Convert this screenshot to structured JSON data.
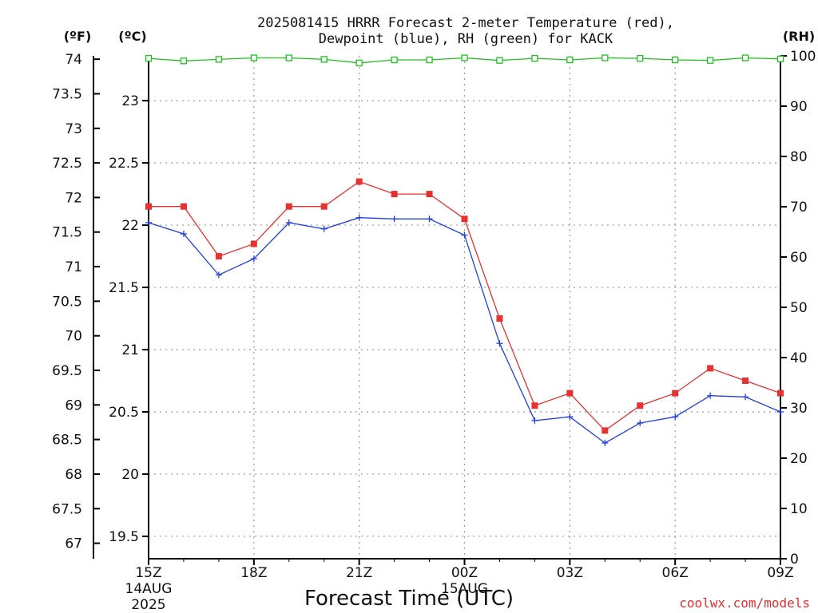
{
  "chart_data": {
    "type": "line",
    "title_line1": "2025081415 HRRR Forecast 2-meter Temperature (red),",
    "title_line2": "Dewpoint (blue), RH (green) for KACK",
    "xlabel": "Forecast Time (UTC)",
    "credit": "coolwx.com/models",
    "unit_f": "(ºF)",
    "unit_c": "(ºC)",
    "unit_rh": "(RH)",
    "x_tick_labels": [
      {
        "hour": 0,
        "label": "15Z",
        "sub1": "14AUG",
        "sub2": "2025"
      },
      {
        "hour": 3,
        "label": "18Z",
        "sub1": "",
        "sub2": ""
      },
      {
        "hour": 6,
        "label": "21Z",
        "sub1": "",
        "sub2": ""
      },
      {
        "hour": 9,
        "label": "00Z",
        "sub1": "15AUG",
        "sub2": ""
      },
      {
        "hour": 12,
        "label": "03Z",
        "sub1": "",
        "sub2": ""
      },
      {
        "hour": 15,
        "label": "06Z",
        "sub1": "",
        "sub2": ""
      },
      {
        "hour": 18,
        "label": "09Z",
        "sub1": "",
        "sub2": ""
      }
    ],
    "xlim": [
      0,
      18
    ],
    "celsius_axis": {
      "ylim": [
        19.32,
        23.36
      ],
      "ticks": [
        "19.5",
        "20",
        "20.5",
        "21",
        "21.5",
        "22",
        "22.5",
        "23"
      ]
    },
    "fahrenheit_ticks": [
      "67",
      "67.5",
      "68",
      "68.5",
      "69",
      "69.5",
      "70",
      "70.5",
      "71",
      "71.5",
      "72",
      "72.5",
      "73",
      "73.5",
      "74"
    ],
    "rh_axis": {
      "ylim": [
        0,
        100
      ],
      "ticks": [
        "0",
        "10",
        "20",
        "30",
        "40",
        "50",
        "60",
        "70",
        "80",
        "90",
        "100"
      ]
    },
    "grid": true,
    "series": [
      {
        "name": "Temperature",
        "color": "#e83030",
        "marker": "filled-square",
        "axis": "celsius",
        "values": [
          22.15,
          22.15,
          21.75,
          21.85,
          22.15,
          22.15,
          22.35,
          22.25,
          22.25,
          22.05,
          21.25,
          20.55,
          20.65,
          20.35,
          20.55,
          20.65,
          20.85,
          20.75,
          20.65
        ]
      },
      {
        "name": "Dewpoint",
        "color": "#2040e0",
        "marker": "plus",
        "axis": "celsius",
        "values": [
          22.02,
          21.93,
          21.6,
          21.73,
          22.02,
          21.97,
          22.06,
          22.05,
          22.05,
          21.92,
          21.05,
          20.43,
          20.46,
          20.25,
          20.41,
          20.46,
          20.63,
          20.62,
          20.5
        ]
      },
      {
        "name": "RH",
        "color": "#20c020",
        "marker": "open-square",
        "axis": "rh",
        "values": [
          99.5,
          99.0,
          99.3,
          99.6,
          99.6,
          99.3,
          98.6,
          99.2,
          99.2,
          99.6,
          99.1,
          99.5,
          99.2,
          99.6,
          99.5,
          99.2,
          99.1,
          99.6,
          99.4
        ]
      }
    ]
  }
}
